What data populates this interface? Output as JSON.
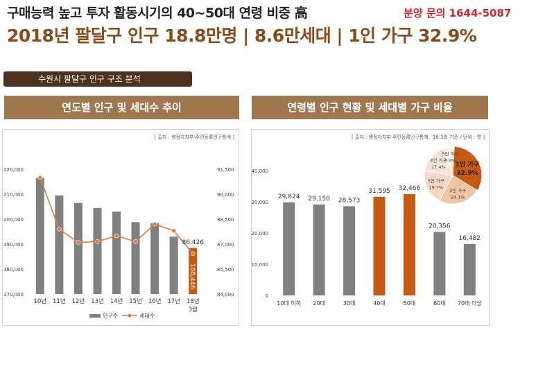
{
  "header": {
    "headline": "구매능력 높고 투자 활동시기의 40~50대 연령 비중 高",
    "contact": "분양 문의 1644-5087",
    "subheadline": "2018년 팔달구 인구 18.8만명 | 8.6만세대 | 1인 가구 32.9%"
  },
  "section_tag": "수원시 팔달구 인구 구조 분석",
  "left_panel": {
    "title": "연도별 인구 및 세대수 추이",
    "source": "[ 출처 : 행정자치부 주민등록인구통계 ]"
  },
  "right_panel": {
    "title": "연령별 인구 현황 및 세대별 가구 비율",
    "source": "[ 출처 : 행정자치부 주민등록인구통계, '18.3월 기준 / 단위 : 명 ]"
  },
  "colors": {
    "gray": "#808080",
    "orange": "#c55a11",
    "orange_line": "#e07b39",
    "brown": "#8b4a18",
    "red": "#d9232e"
  },
  "chart_data": [
    {
      "type": "bar+line",
      "title": "연도별 인구 및 세대수 추이",
      "categories": [
        "10년",
        "11년",
        "12년",
        "13년",
        "14년",
        "15년",
        "16년",
        "17년",
        "18년\n3월"
      ],
      "series": [
        {
          "name": "인구수",
          "type": "bar",
          "axis": "left",
          "values": [
            216500,
            209500,
            206500,
            204500,
            203000,
            198800,
            198400,
            193000,
            188446
          ],
          "highlight": [
            false,
            false,
            false,
            false,
            false,
            false,
            false,
            false,
            true
          ]
        },
        {
          "name": "세대수",
          "type": "line",
          "axis": "right",
          "values": [
            91000,
            87900,
            87100,
            87150,
            87500,
            87150,
            88200,
            87800,
            86426
          ]
        }
      ],
      "data_labels": {
        "bar_last": "188,446",
        "line_last": "86,426"
      },
      "y_left": {
        "range": [
          170000,
          220000
        ],
        "ticks": [
          "220,000",
          "210,000",
          "200,000",
          "190,000",
          "180,000",
          "170,000"
        ]
      },
      "y_right": {
        "range": [
          84000,
          91500
        ],
        "ticks": [
          "91,500",
          "90,000",
          "88,500",
          "87,000",
          "85,500",
          "84,000"
        ]
      },
      "legend": [
        "인구수",
        "세대수"
      ],
      "legend_position": "bottom"
    },
    {
      "type": "bar",
      "title": "연령별 인구 현황",
      "categories": [
        "10대 이하",
        "20대",
        "30대",
        "40대",
        "50대",
        "60대",
        "70대 이상"
      ],
      "values": [
        29824,
        29150,
        28573,
        31595,
        32466,
        20356,
        16482
      ],
      "value_labels": [
        "29,824",
        "29,150",
        "28,573",
        "31,595",
        "32,466",
        "20,356",
        "16,482"
      ],
      "highlight": [
        false,
        false,
        false,
        true,
        true,
        false,
        false
      ],
      "ylim": [
        0,
        40000
      ],
      "y_ticks": [
        "40,000",
        "30,000",
        "20,000",
        "10,000",
        "0"
      ]
    },
    {
      "type": "pie",
      "title": "세대별 가구 비율",
      "slices": [
        {
          "label": "1인 가구",
          "value": 32.9,
          "value_label": "32.9%"
        },
        {
          "label": "2인 가구",
          "value": 24.1,
          "value_label": "24.1%"
        },
        {
          "label": "3인 가구",
          "value": 19.7,
          "value_label": "19.7%"
        },
        {
          "label": "4인 가구",
          "value": 17.4,
          "value_label": "17.4%"
        },
        {
          "label": "5인 이상",
          "value": 5.9,
          "value_label": "5.9%"
        }
      ],
      "slice_colors": [
        "#c55a11",
        "#f0c4a4",
        "#f5d8c4",
        "#f9e6d8",
        "#fcf1e9"
      ]
    }
  ]
}
